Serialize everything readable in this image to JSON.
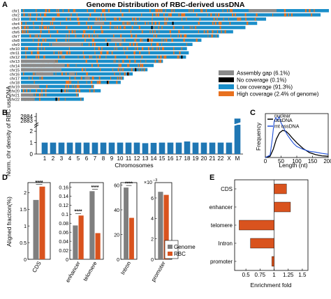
{
  "panels": {
    "a": "A",
    "b": "B",
    "c": "C",
    "d": "D",
    "e": "E"
  },
  "colors": {
    "blue": "#1a8ec9",
    "orange": "#e8711f",
    "gray": "#8a8a8a",
    "black": "#000000",
    "bar_blue": "#1f77b4",
    "rbc_orange": "#d9531e",
    "genome_gray": "#7f7f7f",
    "mt_blue": "#1f4fd8"
  },
  "chart_data": [
    {
      "id": "A",
      "type": "heatmap",
      "title": "Genome Distribution of RBC-derived ussDNA",
      "categories": [
        "chr1",
        "chr2",
        "chr3",
        "chr4",
        "chr5",
        "chr6",
        "chr7",
        "chr8",
        "chr9",
        "chr10",
        "chr11",
        "chr12",
        "chr13",
        "chr14",
        "chr15",
        "chr16",
        "chr17",
        "chr18",
        "chr19",
        "chr20",
        "chr21",
        "chr22"
      ],
      "chrom_relative_length": [
        1.0,
        0.973,
        0.796,
        0.767,
        0.729,
        0.689,
        0.643,
        0.586,
        0.557,
        0.539,
        0.545,
        0.536,
        0.461,
        0.431,
        0.411,
        0.363,
        0.334,
        0.324,
        0.237,
        0.259,
        0.188,
        0.204
      ],
      "legend": [
        {
          "label": "Assembly gap (6.1%)",
          "color": "#8a8a8a"
        },
        {
          "label": "No coverage (0.1%)",
          "color": "#000000"
        },
        {
          "label": "Low coverage (91.3%)",
          "color": "#1a8ec9"
        },
        {
          "label": "High coverage (2.4% of genome)",
          "color": "#e8711f"
        }
      ]
    },
    {
      "id": "B",
      "type": "bar",
      "categories": [
        "1",
        "2",
        "3",
        "4",
        "5",
        "6",
        "7",
        "8",
        "9",
        "10",
        "11",
        "12",
        "13",
        "14",
        "15",
        "16",
        "17",
        "18",
        "19",
        "20",
        "21",
        "22",
        "X",
        "M"
      ],
      "values": [
        1.0,
        1.0,
        1.0,
        1.0,
        1.0,
        1.0,
        1.0,
        1.0,
        1.0,
        1.0,
        1.0,
        1.0,
        0.95,
        0.98,
        1.0,
        1.0,
        1.0,
        1.1,
        1.0,
        1.0,
        1.0,
        1.0,
        1.0,
        2883.5
      ],
      "xlabel": "Chromosomes",
      "ylabel": "Norm. chr density of RBC ussDNA",
      "yticks_low": [
        "0",
        "1",
        "2"
      ],
      "yticks_high": [
        "2883",
        "2884"
      ],
      "ylim_low": [
        0,
        2.5
      ],
      "ylim_high": [
        2882.5,
        2884.2
      ]
    },
    {
      "id": "C",
      "type": "line",
      "xlabel": "Length (nt)",
      "ylabel": "Frequency",
      "xticks": [
        "0",
        "50",
        "100",
        "150",
        "200"
      ],
      "xlim": [
        0,
        200
      ],
      "series": [
        {
          "name": "nuclear ussDNA",
          "x": [
            0,
            15,
            25,
            35,
            45,
            55,
            65,
            75,
            85,
            100,
            120,
            140,
            160,
            180,
            200
          ],
          "values": [
            0,
            0.03,
            0.2,
            0.45,
            0.6,
            0.66,
            0.64,
            0.57,
            0.48,
            0.36,
            0.22,
            0.12,
            0.07,
            0.04,
            0.03
          ]
        },
        {
          "name": "mt ussDNA",
          "x": [
            0,
            15,
            22,
            28,
            33,
            38,
            44,
            50,
            56,
            62,
            70,
            80,
            90,
            100,
            120,
            140,
            160,
            180,
            200
          ],
          "values": [
            0,
            0.06,
            0.45,
            0.88,
            0.97,
            0.9,
            1.0,
            0.84,
            0.76,
            0.66,
            0.55,
            0.44,
            0.34,
            0.27,
            0.2,
            0.15,
            0.13,
            0.1,
            0.08
          ]
        }
      ]
    },
    {
      "id": "D",
      "type": "bar",
      "ylabel": "Aligned fraction(%)",
      "legend": [
        "Genome",
        "RBC"
      ],
      "subplots": [
        {
          "categories": [
            "CDS"
          ],
          "series": [
            {
              "name": "Genome",
              "values": [
                1.78
              ]
            },
            {
              "name": "RBC",
              "values": [
                2.18
              ]
            }
          ],
          "ylim": [
            0,
            2.3
          ],
          "yticks": [
            "0",
            "0.5",
            "1",
            "1.5",
            "2"
          ],
          "sig": "****"
        },
        {
          "categories": [
            "enhancer",
            "telomere"
          ],
          "series": [
            {
              "name": "Genome",
              "values": [
                0.075,
                0.151
              ]
            },
            {
              "name": "RBC",
              "values": [
                0.097,
                0.058
              ]
            }
          ],
          "ylim": [
            0,
            0.17
          ],
          "yticks": [
            "0",
            "0.02",
            "0.04",
            "0.06",
            "0.08",
            "0.1",
            "0.12",
            "0.14",
            "0.16"
          ],
          "sig": [
            "****",
            "****"
          ]
        },
        {
          "categories": [
            "Intron"
          ],
          "series": [
            {
              "name": "Genome",
              "values": [
                58
              ]
            },
            {
              "name": "RBC",
              "values": [
                33.5
              ]
            }
          ],
          "ylim": [
            0,
            62
          ],
          "yticks": [
            "0",
            "20",
            "40",
            "60"
          ],
          "sig": "****"
        },
        {
          "categories": [
            "promoter"
          ],
          "series": [
            {
              "name": "Genome",
              "values": [
                6.6
              ]
            },
            {
              "name": "RBC",
              "values": [
                6.3
              ]
            }
          ],
          "ylim": [
            0,
            7.5
          ],
          "yticks": [
            "0",
            "2",
            "4",
            "6"
          ],
          "multiplier": "x10^-3"
        }
      ]
    },
    {
      "id": "E",
      "type": "bar",
      "orientation": "horizontal",
      "categories": [
        "CDS",
        "enhancer",
        "telomere",
        "Intron",
        "promoter"
      ],
      "values": [
        1.22,
        1.29,
        0.38,
        0.58,
        0.96
      ],
      "baseline": 1,
      "xlabel": "Enrichment fold",
      "xticks": [
        "0.5",
        "0.75",
        "1",
        "1.25",
        "1.5"
      ],
      "xlim": [
        0.3,
        1.6
      ]
    }
  ]
}
